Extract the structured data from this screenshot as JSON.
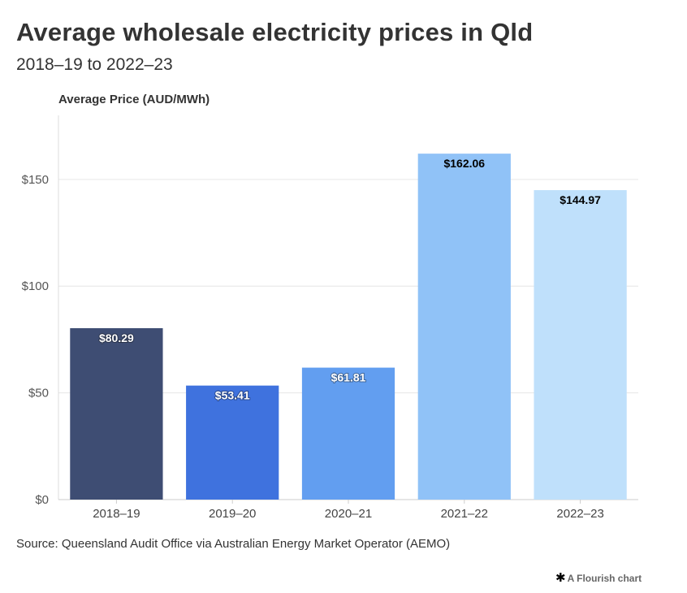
{
  "title": "Average wholesale electricity prices in Qld",
  "subtitle": "2018–19 to 2022–23",
  "source": "Source: Queensland Audit Office via Australian Energy Market Operator (AEMO)",
  "credit": {
    "icon": "flourish-asterisk-icon",
    "symbol": "✱",
    "text": "A Flourish chart"
  },
  "chart_data": {
    "type": "bar",
    "title": "Average wholesale electricity prices in Qld",
    "subtitle": "2018–19 to 2022–23",
    "ylabel": "Average Price (AUD/MWh)",
    "xlabel": "",
    "categories": [
      "2018–19",
      "2019–20",
      "2020–21",
      "2021–22",
      "2022–23"
    ],
    "values": [
      80.29,
      53.41,
      61.81,
      162.06,
      144.97
    ],
    "data_labels": [
      "$80.29",
      "$53.41",
      "$61.81",
      "$162.06",
      "$144.97"
    ],
    "y_ticks": [
      0,
      50,
      100,
      150
    ],
    "y_tick_labels": [
      "$0",
      "$50",
      "$100",
      "$150"
    ],
    "ylim": [
      0,
      180
    ],
    "grid": true,
    "legend": "none",
    "colors": [
      "#3e4d73",
      "#3f72de",
      "#629ef0",
      "#90c2f7",
      "#bfe0fb"
    ],
    "label_colors": [
      "#ffffff",
      "#ffffff",
      "#ffffff",
      "#000000",
      "#000000"
    ]
  }
}
